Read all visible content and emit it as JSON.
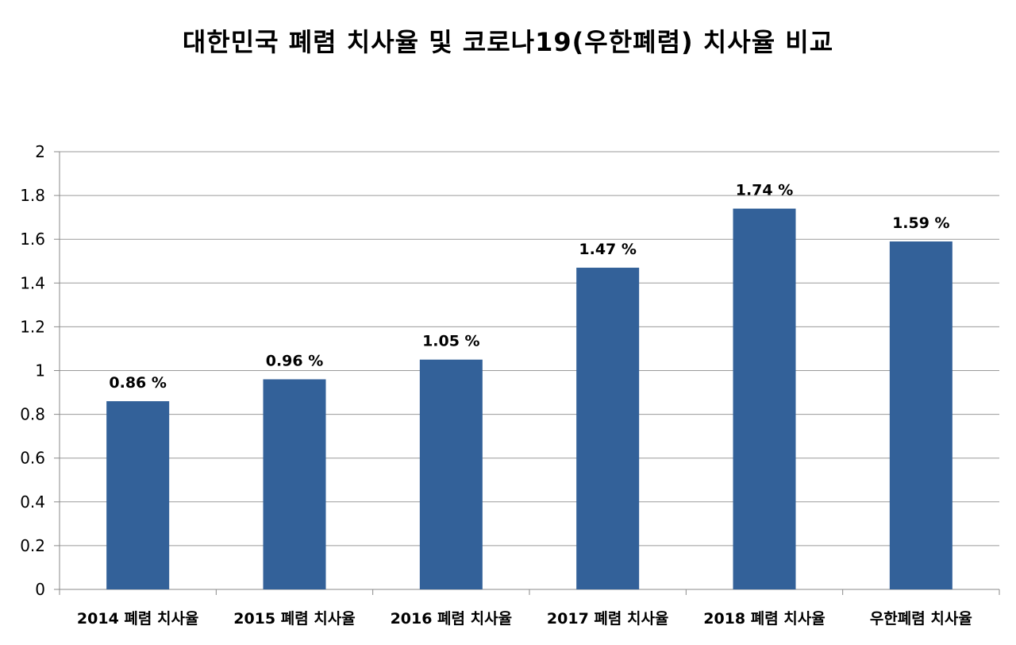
{
  "chart_data": {
    "type": "bar",
    "title": "대한민국 폐렴 치사율 및 코로나19(우한폐렴) 치사율 비교",
    "categories": [
      "2014 폐렴 치사율",
      "2015 폐렴 치사율",
      "2016 폐렴 치사율",
      "2017 폐렴 치사율",
      "2018 폐렴 치사율",
      "우한폐렴 치사율"
    ],
    "values": [
      0.86,
      0.96,
      1.05,
      1.47,
      1.74,
      1.59
    ],
    "data_labels": [
      "0.86 %",
      "0.96 %",
      "1.05 %",
      "1.47 %",
      "1.74 %",
      "1.59 %"
    ],
    "xlabel": "",
    "ylabel": "",
    "ylim": [
      0,
      2
    ],
    "yticks": [
      "0",
      "0.2",
      "0.4",
      "0.6",
      "0.8",
      "1",
      "1.2",
      "1.4",
      "1.6",
      "1.8",
      "2"
    ],
    "grid": true,
    "legend": "none",
    "bar_color": "#336199"
  }
}
